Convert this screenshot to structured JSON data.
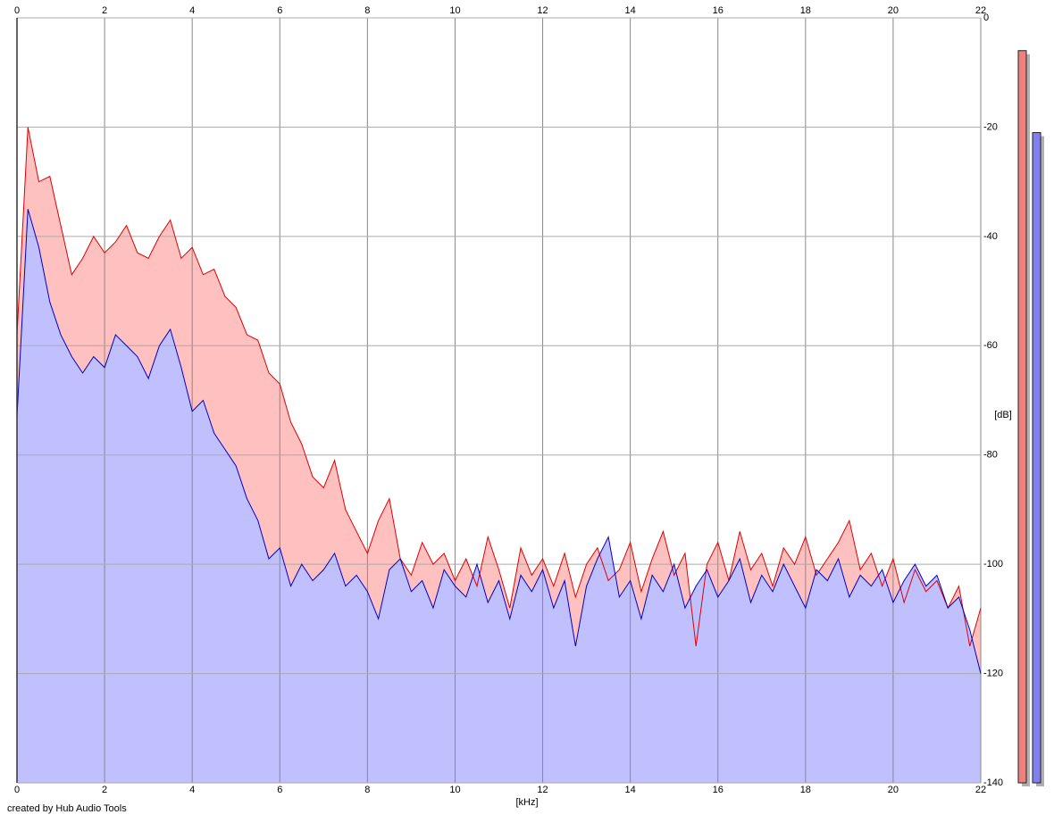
{
  "chart_data": {
    "type": "area",
    "x_label": "[kHz]",
    "y_label": "[dB]",
    "footer": "created by Hub Audio Tools",
    "x": [
      0,
      0.25,
      0.5,
      0.75,
      1,
      1.25,
      1.5,
      1.75,
      2,
      2.25,
      2.5,
      2.75,
      3,
      3.25,
      3.5,
      3.75,
      4,
      4.25,
      4.5,
      4.75,
      5,
      5.25,
      5.5,
      5.75,
      6,
      6.25,
      6.5,
      6.75,
      7,
      7.25,
      7.5,
      7.75,
      8,
      8.25,
      8.5,
      8.75,
      9,
      9.25,
      9.5,
      9.75,
      10,
      10.25,
      10.5,
      10.75,
      11,
      11.25,
      11.5,
      11.75,
      12,
      12.25,
      12.5,
      12.75,
      13,
      13.25,
      13.5,
      13.75,
      14,
      14.25,
      14.5,
      14.75,
      15,
      15.25,
      15.5,
      15.75,
      16,
      16.25,
      16.5,
      16.75,
      17,
      17.25,
      17.5,
      17.75,
      18,
      18.25,
      18.5,
      18.75,
      19,
      19.25,
      19.5,
      19.75,
      20,
      20.25,
      20.5,
      20.75,
      21,
      21.25,
      21.5,
      21.75,
      22
    ],
    "series": [
      {
        "color": "#e00000",
        "fill": "#ffc0c0",
        "values": [
          -58,
          -20,
          -30,
          -29,
          -38,
          -47,
          -44,
          -40,
          -43,
          -41,
          -38,
          -43,
          -44,
          -40,
          -37,
          -44,
          -42,
          -47,
          -46,
          -51,
          -53,
          -58,
          -59,
          -65,
          -67,
          -74,
          -78,
          -84,
          -86,
          -81,
          -90,
          -94,
          -98,
          -92,
          -88,
          -99,
          -102,
          -96,
          -100,
          -98,
          -103,
          -99,
          -104,
          -95,
          -101,
          -108,
          -97,
          -102,
          -99,
          -104,
          -98,
          -106,
          -100,
          -97,
          -103,
          -101,
          -96,
          -105,
          -99,
          -94,
          -102,
          -98,
          -115,
          -100,
          -96,
          -103,
          -94,
          -101,
          -98,
          -104,
          -97,
          -100,
          -95,
          -102,
          -99,
          -96,
          -92,
          -101,
          -98,
          -104,
          -99,
          -107,
          -101,
          -105,
          -103,
          -108,
          -104,
          -115,
          -108
        ]
      },
      {
        "color": "#0000c8",
        "fill": "#c0c0ff",
        "values": [
          -73,
          -35,
          -42,
          -52,
          -58,
          -62,
          -65,
          -62,
          -64,
          -58,
          -60,
          -62,
          -66,
          -60,
          -57,
          -64,
          -72,
          -70,
          -76,
          -79,
          -82,
          -88,
          -92,
          -99,
          -97,
          -104,
          -100,
          -103,
          -101,
          -98,
          -104,
          -102,
          -105,
          -110,
          -101,
          -99,
          -105,
          -103,
          -108,
          -101,
          -104,
          -106,
          -100,
          -107,
          -103,
          -110,
          -102,
          -105,
          -101,
          -108,
          -103,
          -115,
          -104,
          -99,
          -95,
          -106,
          -103,
          -110,
          -102,
          -105,
          -100,
          -108,
          -104,
          -101,
          -106,
          -103,
          -99,
          -107,
          -102,
          -105,
          -100,
          -104,
          -108,
          -101,
          -103,
          -99,
          -106,
          -102,
          -104,
          -101,
          -107,
          -103,
          -100,
          -104,
          -102,
          -108,
          -106,
          -112,
          -120
        ]
      }
    ],
    "meters": [
      {
        "color": "#f08080",
        "value": -6
      },
      {
        "color": "#8080f0",
        "value": -21
      }
    ],
    "xlim": [
      0,
      22
    ],
    "ylim": [
      -140,
      0
    ],
    "xticks": [
      0,
      2,
      4,
      6,
      8,
      10,
      12,
      14,
      16,
      18,
      20,
      22
    ],
    "yticks": [
      0,
      -20,
      -40,
      -60,
      -80,
      -100,
      -120,
      -140
    ],
    "grid": true
  }
}
